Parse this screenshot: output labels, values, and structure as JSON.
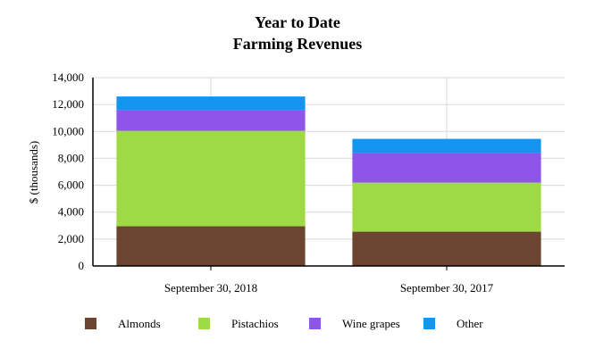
{
  "chart_data": {
    "type": "bar",
    "stacked": true,
    "title": "Year to Date",
    "subtitle": "Farming Revenues",
    "xlabel": "",
    "ylabel": "$ (thousands)",
    "ylim": [
      0,
      14000
    ],
    "yticks": [
      0,
      2000,
      4000,
      6000,
      8000,
      10000,
      12000,
      14000
    ],
    "ytick_labels": [
      "0",
      "2,000",
      "4,000",
      "6,000",
      "8,000",
      "10,000",
      "12,000",
      "14,000"
    ],
    "grid": true,
    "legend_position": "bottom",
    "categories": [
      "September 30, 2018",
      "September 30, 2017"
    ],
    "series": [
      {
        "name": "Almonds",
        "color": "#6b4530",
        "values": [
          2950,
          2550
        ]
      },
      {
        "name": "Pistachios",
        "color": "#9ed946",
        "values": [
          7100,
          3650
        ]
      },
      {
        "name": "Wine grapes",
        "color": "#8e55ea",
        "values": [
          1500,
          2200
        ]
      },
      {
        "name": "Other",
        "color": "#1496f0",
        "values": [
          1050,
          1050
        ]
      }
    ]
  }
}
